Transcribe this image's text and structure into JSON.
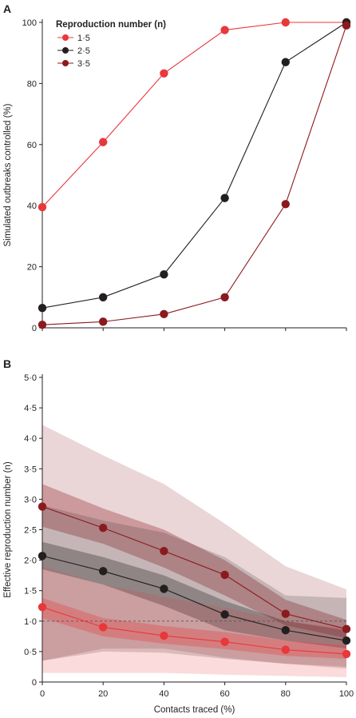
{
  "chart_data": [
    {
      "panel": "A",
      "type": "line",
      "ylabel": "Simulated outbreaks controlled (%)",
      "xlabel": "",
      "x": [
        0,
        20,
        40,
        60,
        80,
        100
      ],
      "xlim": [
        0,
        100
      ],
      "ylim": [
        0,
        100
      ],
      "xticks": [
        0,
        20,
        40,
        60,
        80,
        100
      ],
      "yticks": [
        0,
        20,
        40,
        60,
        80,
        100
      ],
      "ytick_labels": [
        "0",
        "20",
        "40",
        "60",
        "80",
        "100"
      ],
      "legend_title": "Reproduction number (n)",
      "legend_position": "top-left",
      "series": [
        {
          "name": "1·5",
          "color": "#e8383b",
          "values": [
            39.5,
            60.8,
            83.3,
            97.5,
            100,
            100
          ]
        },
        {
          "name": "2·5",
          "color": "#231f20",
          "values": [
            6.5,
            10,
            17.5,
            42.5,
            87,
            100
          ]
        },
        {
          "name": "3·5",
          "color": "#8b1a1f",
          "values": [
            1,
            2,
            4.5,
            10,
            40.5,
            99
          ]
        }
      ]
    },
    {
      "panel": "B",
      "type": "line",
      "ylabel": "Effective reproduction number (n)",
      "xlabel": "Contacts traced (%)",
      "x": [
        0,
        20,
        40,
        60,
        80,
        100
      ],
      "xlim": [
        0,
        100
      ],
      "ylim": [
        0,
        5
      ],
      "xticks": [
        0,
        20,
        40,
        60,
        80,
        100
      ],
      "xtick_labels": [
        "0",
        "20",
        "40",
        "60",
        "80",
        "100"
      ],
      "yticks": [
        0,
        0.5,
        1,
        1.5,
        2,
        2.5,
        3,
        3.5,
        4,
        4.5,
        5
      ],
      "ytick_labels": [
        "0",
        "0·5",
        "1·0",
        "1·5",
        "2·0",
        "2·5",
        "3·0",
        "3·5",
        "4·0",
        "4·5",
        "5·0"
      ],
      "reference_line": {
        "y": 1.0,
        "style": "dashed"
      },
      "series": [
        {
          "name": "3·5",
          "color": "#8b1a1f",
          "values": [
            2.88,
            2.53,
            2.15,
            1.76,
            1.12,
            0.87
          ],
          "band_inner": {
            "lower": [
              2.55,
              2.27,
              1.88,
              1.42,
              0.93,
              0.72
            ],
            "upper": [
              3.25,
              2.85,
              2.5,
              2.0,
              1.35,
              1.02
            ]
          },
          "band_outer": {
            "lower": [
              0.35,
              0.55,
              0.55,
              0.4,
              0.3,
              0.22
            ],
            "upper": [
              4.22,
              3.72,
              3.25,
              2.6,
              1.9,
              1.52
            ]
          }
        },
        {
          "name": "2·5",
          "color": "#231f20",
          "values": [
            2.07,
            1.82,
            1.53,
            1.11,
            0.85,
            0.68
          ],
          "band_inner": {
            "lower": [
              1.85,
              1.6,
              1.25,
              0.85,
              0.68,
              0.55
            ],
            "upper": [
              2.3,
              2.05,
              1.75,
              1.33,
              1.0,
              0.85
            ]
          },
          "band_outer": {
            "lower": [
              0.35,
              0.5,
              0.48,
              0.38,
              0.3,
              0.25
            ],
            "upper": [
              2.9,
              2.65,
              2.45,
              2.05,
              1.42,
              1.38
            ]
          }
        },
        {
          "name": "1·5",
          "color": "#e8383b",
          "values": [
            1.23,
            0.9,
            0.76,
            0.66,
            0.53,
            0.46
          ],
          "band_inner": {
            "lower": [
              1.05,
              0.75,
              0.63,
              0.54,
              0.43,
              0.38
            ],
            "upper": [
              1.38,
              1.05,
              0.92,
              0.82,
              0.68,
              0.6
            ]
          },
          "band_outer": {
            "lower": [
              0.15,
              0.15,
              0.15,
              0.12,
              0.1,
              0.08
            ],
            "upper": [
              1.9,
              1.6,
              1.4,
              1.22,
              1.0,
              0.88
            ]
          }
        }
      ]
    }
  ]
}
